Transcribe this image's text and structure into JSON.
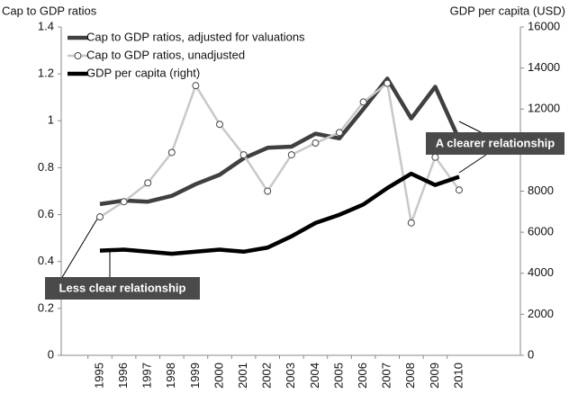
{
  "chart_data": {
    "type": "line",
    "y_label": "Cap to GDP ratios",
    "y2_label": "GDP per capita (USD)",
    "categories": [
      "1995",
      "1996",
      "1997",
      "1998",
      "1999",
      "2000",
      "2001",
      "2002",
      "2003",
      "2004",
      "2005",
      "2006",
      "2007",
      "2008",
      "2009",
      "2010"
    ],
    "series": [
      {
        "name": "Cap to GDP ratios, adjusted for valuations",
        "color": "#404040",
        "marker": false,
        "values": [
          0.645,
          0.66,
          0.655,
          0.68,
          0.73,
          0.77,
          0.84,
          0.885,
          0.89,
          0.945,
          0.925,
          1.05,
          1.18,
          1.01,
          1.145,
          0.92
        ]
      },
      {
        "name": "Cap to GDP ratios, unadjusted",
        "color": "#c8c8c8",
        "marker": true,
        "values": [
          0.59,
          0.655,
          0.735,
          0.865,
          1.15,
          0.985,
          0.855,
          0.7,
          0.855,
          0.905,
          0.95,
          1.08,
          1.16,
          0.565,
          0.845,
          0.705
        ]
      },
      {
        "name": "GDP per capita (right)",
        "color": "#000000",
        "marker": false,
        "axis": "y2",
        "values": [
          5100,
          5150,
          5050,
          4950,
          5050,
          5150,
          5050,
          5250,
          5800,
          6450,
          6850,
          7350,
          8150,
          8850,
          8300,
          8700
        ]
      }
    ],
    "ylim": [
      0,
      1.4
    ],
    "yticks": [
      0,
      0.2,
      0.4,
      0.6,
      0.8,
      1,
      1.2,
      1.4
    ],
    "y2lim": [
      0,
      16000
    ],
    "y2ticks": [
      0,
      2000,
      4000,
      6000,
      8000,
      10000,
      12000,
      14000,
      16000
    ],
    "annotations": [
      "Less clear relationship",
      "A clearer relationship"
    ]
  }
}
